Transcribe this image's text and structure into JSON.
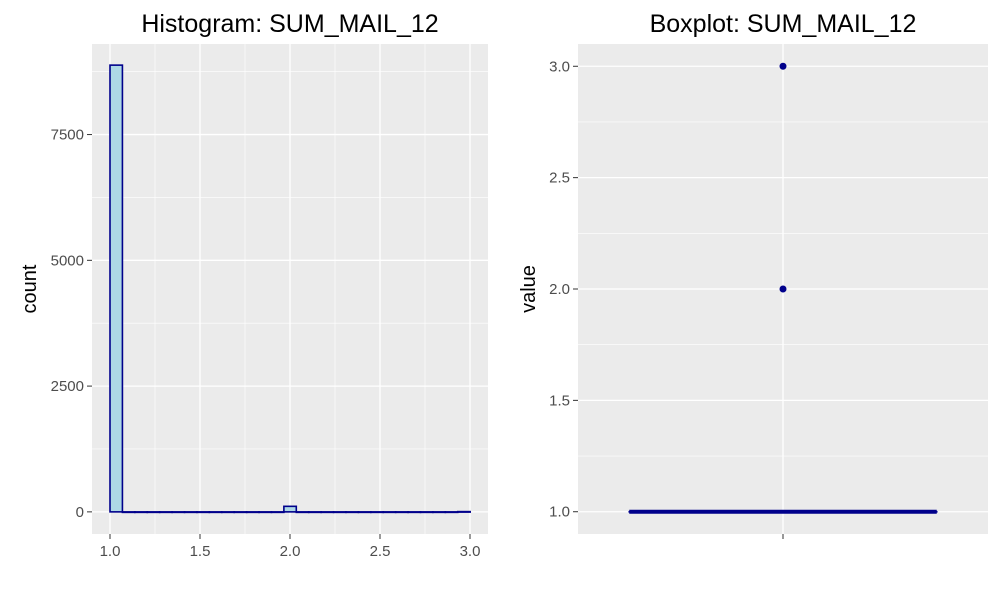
{
  "colors": {
    "panel_bg": "#EBEBEB",
    "grid": "#FFFFFF",
    "bar_fill": "#ADD8E6",
    "bar_stroke": "#00008B",
    "box_color": "#00008B",
    "tick_text": "#4D4D4D"
  },
  "chart_data": [
    {
      "type": "bar",
      "title": "Histogram: SUM_MAIL_12",
      "xlabel": "",
      "ylabel": "count",
      "xlim": [
        0.9,
        3.1
      ],
      "ylim": [
        -440,
        9300
      ],
      "x_ticks": [
        1.0,
        1.5,
        2.0,
        2.5,
        3.0
      ],
      "x_tick_labels": [
        "1.0",
        "1.5",
        "2.0",
        "2.5",
        "3.0"
      ],
      "y_ticks": [
        0,
        2500,
        5000,
        7500
      ],
      "y_tick_labels": [
        "0",
        "2500",
        "5000",
        "7500"
      ],
      "grid": true,
      "bins": [
        {
          "x0": 1.0,
          "x1": 1.069,
          "count": 8880
        },
        {
          "x0": 1.069,
          "x1": 1.138,
          "count": 0
        },
        {
          "x0": 1.138,
          "x1": 1.207,
          "count": 0
        },
        {
          "x0": 1.207,
          "x1": 1.276,
          "count": 0
        },
        {
          "x0": 1.276,
          "x1": 1.345,
          "count": 0
        },
        {
          "x0": 1.345,
          "x1": 1.414,
          "count": 0
        },
        {
          "x0": 1.414,
          "x1": 1.483,
          "count": 0
        },
        {
          "x0": 1.483,
          "x1": 1.552,
          "count": 0
        },
        {
          "x0": 1.552,
          "x1": 1.621,
          "count": 0
        },
        {
          "x0": 1.621,
          "x1": 1.69,
          "count": 0
        },
        {
          "x0": 1.69,
          "x1": 1.759,
          "count": 0
        },
        {
          "x0": 1.759,
          "x1": 1.828,
          "count": 0
        },
        {
          "x0": 1.828,
          "x1": 1.897,
          "count": 0
        },
        {
          "x0": 1.897,
          "x1": 1.966,
          "count": 0
        },
        {
          "x0": 1.966,
          "x1": 2.035,
          "count": 110
        },
        {
          "x0": 2.035,
          "x1": 2.104,
          "count": 0
        },
        {
          "x0": 2.104,
          "x1": 2.173,
          "count": 0
        },
        {
          "x0": 2.173,
          "x1": 2.242,
          "count": 0
        },
        {
          "x0": 2.242,
          "x1": 2.311,
          "count": 0
        },
        {
          "x0": 2.311,
          "x1": 2.38,
          "count": 0
        },
        {
          "x0": 2.38,
          "x1": 2.449,
          "count": 0
        },
        {
          "x0": 2.449,
          "x1": 2.518,
          "count": 0
        },
        {
          "x0": 2.518,
          "x1": 2.587,
          "count": 0
        },
        {
          "x0": 2.587,
          "x1": 2.656,
          "count": 0
        },
        {
          "x0": 2.656,
          "x1": 2.725,
          "count": 0
        },
        {
          "x0": 2.725,
          "x1": 2.794,
          "count": 0
        },
        {
          "x0": 2.794,
          "x1": 2.863,
          "count": 0
        },
        {
          "x0": 2.863,
          "x1": 2.932,
          "count": 0
        },
        {
          "x0": 2.932,
          "x1": 3.001,
          "count": 5
        }
      ]
    },
    {
      "type": "boxplot",
      "title": "Boxplot: SUM_MAIL_12",
      "xlabel": "",
      "ylabel": "value",
      "ylim": [
        0.9,
        3.1
      ],
      "y_ticks": [
        1.0,
        1.5,
        2.0,
        2.5,
        3.0
      ],
      "y_tick_labels": [
        "1.0",
        "1.5",
        "2.0",
        "2.5",
        "3.0"
      ],
      "grid": true,
      "box": {
        "q1": 1.0,
        "median": 1.0,
        "q3": 1.0,
        "whisker_low": 1.0,
        "whisker_high": 1.0
      },
      "outliers": [
        2.0,
        3.0
      ]
    }
  ]
}
